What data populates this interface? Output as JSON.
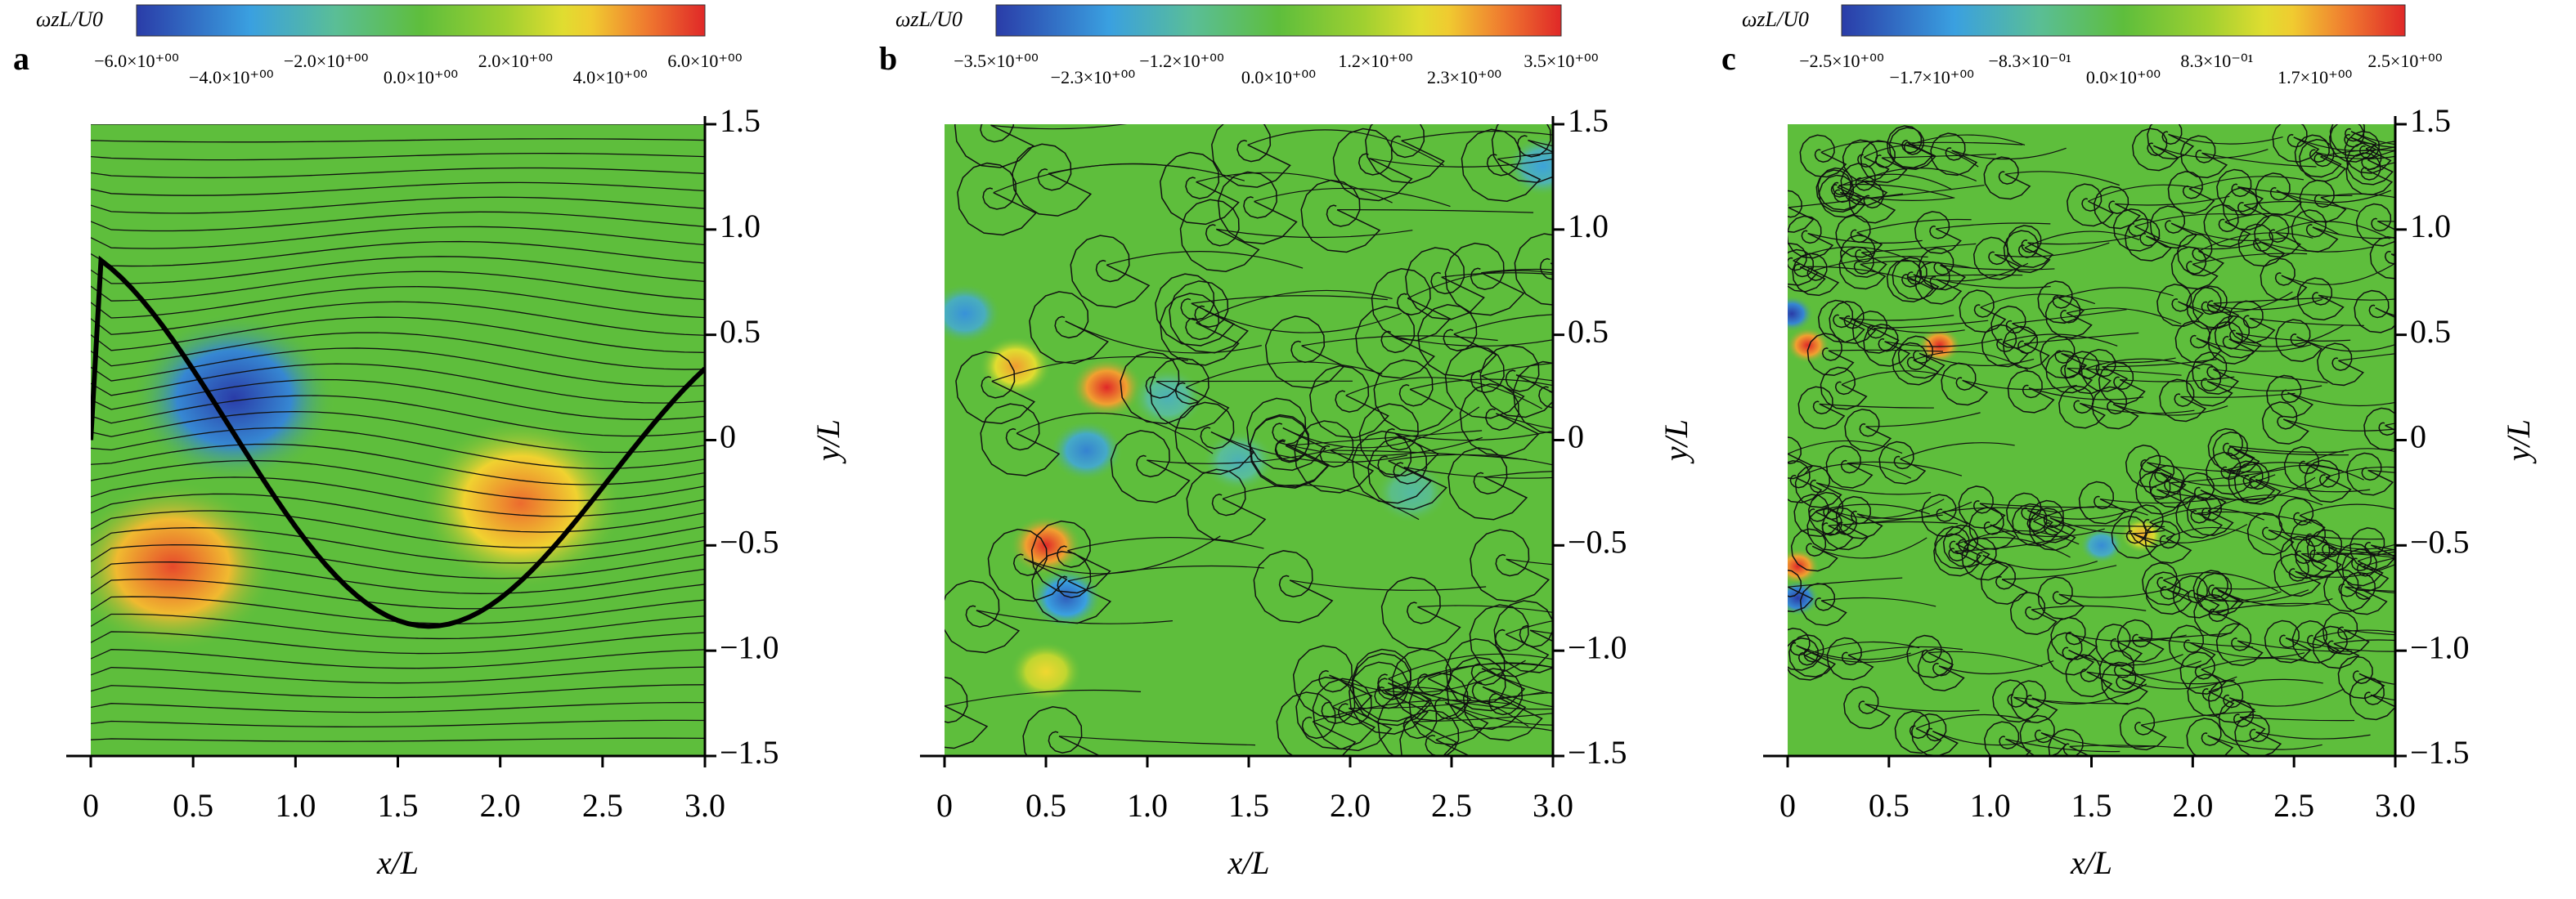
{
  "chart_data": [
    {
      "type": "contour",
      "panel": "a",
      "colorbar_label": "ωzL/U0",
      "clim": [
        -6,
        6
      ],
      "cticks": [
        {
          "value": -6,
          "label": "−6.0×10⁺⁰⁰"
        },
        {
          "value": -4,
          "label": "−4.0×10⁺⁰⁰"
        },
        {
          "value": -2,
          "label": "−2.0×10⁺⁰⁰"
        },
        {
          "value": 0,
          "label": "0.0×10⁺⁰⁰"
        },
        {
          "value": 2,
          "label": "2.0×10⁺⁰⁰"
        },
        {
          "value": 4,
          "label": "4.0×10⁺⁰⁰"
        },
        {
          "value": 6,
          "label": "6.0×10⁺⁰⁰"
        }
      ],
      "xlabel": "x/L",
      "ylabel": "y/L",
      "xlim": [
        0,
        3
      ],
      "ylim": [
        -1.5,
        1.5
      ],
      "xticks": [
        0,
        0.5,
        {
          "value": 1,
          "label": "1.0"
        },
        1.5,
        {
          "value": 2,
          "label": "2.0"
        },
        2.5,
        {
          "value": 3,
          "label": "3.0"
        }
      ],
      "yticks": [
        {
          "value": -1.5,
          "label": "−1.5"
        },
        {
          "value": -1,
          "label": "−1.0"
        },
        {
          "value": -0.5,
          "label": "−0.5"
        },
        0,
        0.5,
        {
          "value": 1,
          "label": "1.0"
        },
        1.5
      ],
      "vortices": {
        "x": [
          0.7,
          0.4,
          2.1
        ],
        "y": [
          0.2,
          -0.6,
          -0.3
        ],
        "values": [
          -6,
          5.5,
          5
        ]
      }
    },
    {
      "type": "contour",
      "panel": "b",
      "colorbar_label": "ωzL/U0",
      "clim": [
        -3.5,
        3.5
      ],
      "cticks": [
        {
          "value": -3.5,
          "label": "−3.5×10⁺⁰⁰"
        },
        {
          "value": -2.3,
          "label": "−2.3×10⁺⁰⁰"
        },
        {
          "value": -1.2,
          "label": "−1.2×10⁺⁰⁰"
        },
        {
          "value": 0,
          "label": "0.0×10⁺⁰⁰"
        },
        {
          "value": 1.2,
          "label": "1.2×10⁺⁰⁰"
        },
        {
          "value": 2.3,
          "label": "2.3×10⁺⁰⁰"
        },
        {
          "value": 3.5,
          "label": "3.5×10⁺⁰⁰"
        }
      ],
      "xlabel": "x/L",
      "ylabel": "y/L",
      "xlim": [
        0,
        3
      ],
      "ylim": [
        -1.5,
        1.5
      ],
      "xticks": [
        0,
        0.5,
        {
          "value": 1,
          "label": "1.0"
        },
        1.5,
        {
          "value": 2,
          "label": "2.0"
        },
        2.5,
        {
          "value": 3,
          "label": "3.0"
        }
      ],
      "yticks": [
        {
          "value": -1.5,
          "label": "−1.5"
        },
        {
          "value": -1,
          "label": "−1.0"
        },
        {
          "value": -0.5,
          "label": "−0.5"
        },
        0,
        0.5,
        {
          "value": 1,
          "label": "1.0"
        },
        1.5
      ],
      "vortices": {
        "x": [
          0.8,
          0.5,
          0.35,
          0.1,
          0.7,
          0.6,
          1.45,
          2.3,
          0.5,
          2.95,
          1.1
        ],
        "y": [
          0.25,
          -0.5,
          0.35,
          0.6,
          -0.05,
          -0.75,
          -0.1,
          -0.25,
          -1.1,
          1.3,
          0.2
        ],
        "values": [
          3.5,
          3.5,
          2.5,
          -2.3,
          -2.5,
          -3,
          -1.5,
          -1.2,
          2,
          -2,
          -1.5
        ]
      }
    },
    {
      "type": "contour",
      "panel": "c",
      "colorbar_label": "ωzL/U0",
      "clim": [
        -2.5,
        2.5
      ],
      "cticks": [
        {
          "value": -2.5,
          "label": "−2.5×10⁺⁰⁰"
        },
        {
          "value": -1.7,
          "label": "−1.7×10⁺⁰⁰"
        },
        {
          "value": -0.83,
          "label": "−8.3×10⁻⁰¹"
        },
        {
          "value": 0,
          "label": "0.0×10⁺⁰⁰"
        },
        {
          "value": 0.83,
          "label": "8.3×10⁻⁰¹"
        },
        {
          "value": 1.7,
          "label": "1.7×10⁺⁰⁰"
        },
        {
          "value": 2.5,
          "label": "2.5×10⁺⁰⁰"
        }
      ],
      "xlabel": "x/L",
      "ylabel": "y/L",
      "xlim": [
        0,
        3
      ],
      "ylim": [
        -1.5,
        1.5
      ],
      "xticks": [
        0,
        0.5,
        {
          "value": 1,
          "label": "1.0"
        },
        1.5,
        {
          "value": 2,
          "label": "2.0"
        },
        2.5,
        {
          "value": 3,
          "label": "3.0"
        }
      ],
      "yticks": [
        {
          "value": -1.5,
          "label": "−1.5"
        },
        {
          "value": -1,
          "label": "−1.0"
        },
        {
          "value": -0.5,
          "label": "−0.5"
        },
        0,
        0.5,
        {
          "value": 1,
          "label": "1.0"
        },
        1.5
      ],
      "vortices": {
        "x": [
          0.1,
          0.75,
          0.05,
          0.05,
          0.02,
          1.55,
          1.75
        ],
        "y": [
          0.45,
          0.45,
          -0.6,
          -0.75,
          0.6,
          -0.5,
          -0.45
        ],
        "values": [
          2.5,
          2.5,
          2.5,
          -2.5,
          -2.5,
          -1.7,
          1.7
        ]
      }
    }
  ]
}
